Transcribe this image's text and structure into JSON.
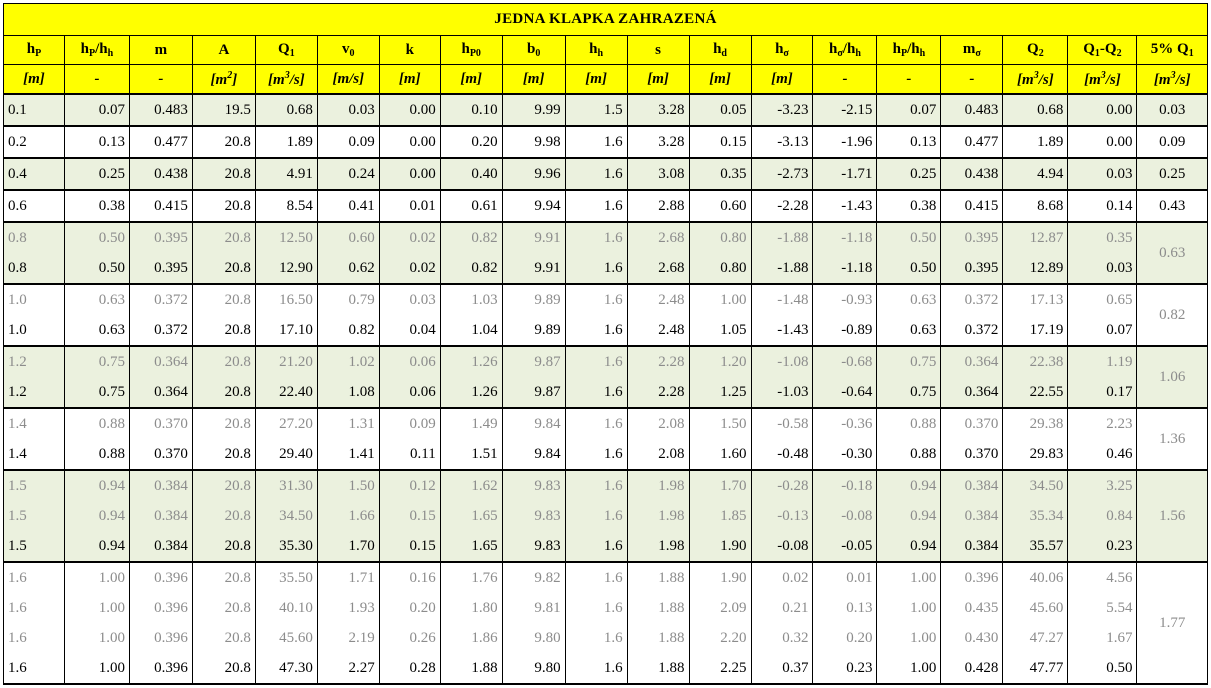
{
  "title": "JEDNA KLAPKA ZAHRAZENÁ",
  "columns": [
    {
      "main": "h",
      "sub": "P",
      "unit": "[m]"
    },
    {
      "main": "h",
      "sub": "P",
      "main2": "/h",
      "sub2": "h",
      "unit": "-"
    },
    {
      "main": "m",
      "unit": "-"
    },
    {
      "main": "A",
      "unit": "[m",
      "sup": "2",
      "unit_end": "]"
    },
    {
      "main": "Q",
      "sub": "1",
      "unit": "[m",
      "sup": "3",
      "unit_end": "/s]"
    },
    {
      "main": "v",
      "sub": "0",
      "unit": "[m/s]"
    },
    {
      "main": "k",
      "unit": "[m]"
    },
    {
      "main": "h",
      "sub": "P0",
      "unit": "[m]"
    },
    {
      "main": "b",
      "sub": "0",
      "unit": "[m]"
    },
    {
      "main": "h",
      "sub": "h",
      "unit": "[m]"
    },
    {
      "main": "s",
      "unit": "[m]"
    },
    {
      "main": "h",
      "sub": "d",
      "unit": "[m]"
    },
    {
      "main": "h",
      "sub": "σ",
      "unit": "[m]"
    },
    {
      "main": "h",
      "sub": "σ",
      "main2": "/h",
      "sub2": "h",
      "unit": "-"
    },
    {
      "main": "h",
      "sub": "P",
      "main2": "/h",
      "sub2": "h",
      "unit": "-"
    },
    {
      "main": "m",
      "sub": "σ",
      "unit": "-"
    },
    {
      "main": "Q",
      "sub": "2",
      "unit": "[m",
      "sup": "3",
      "unit_end": "/s]"
    },
    {
      "main": "Q",
      "sub": "1",
      "main2": "-Q",
      "sub2": "2",
      "unit": "[m",
      "sup": "3",
      "unit_end": "/s]"
    },
    {
      "main": "5% Q",
      "sub": "1",
      "unit": "[m",
      "sup": "3",
      "unit_end": "/s]"
    }
  ],
  "groups": [
    {
      "shade": true,
      "pct": "0.03",
      "rows": [
        {
          "style": "cur",
          "cells": [
            "0.1",
            "0.07",
            "0.483",
            "19.5",
            "0.68",
            "0.03",
            "0.00",
            "0.10",
            "9.99",
            "1.5",
            "3.28",
            "0.05",
            "-3.23",
            "-2.15",
            "0.07",
            "0.483",
            "0.68",
            "0.00"
          ]
        }
      ]
    },
    {
      "shade": false,
      "pct": "0.09",
      "rows": [
        {
          "style": "cur",
          "cells": [
            "0.2",
            "0.13",
            "0.477",
            "20.8",
            "1.89",
            "0.09",
            "0.00",
            "0.20",
            "9.98",
            "1.6",
            "3.28",
            "0.15",
            "-3.13",
            "-1.96",
            "0.13",
            "0.477",
            "1.89",
            "0.00"
          ]
        }
      ]
    },
    {
      "shade": true,
      "pct": "0.25",
      "rows": [
        {
          "style": "cur",
          "cells": [
            "0.4",
            "0.25",
            "0.438",
            "20.8",
            "4.91",
            "0.24",
            "0.00",
            "0.40",
            "9.96",
            "1.6",
            "3.08",
            "0.35",
            "-2.73",
            "-1.71",
            "0.25",
            "0.438",
            "4.94",
            "0.03"
          ]
        }
      ]
    },
    {
      "shade": false,
      "pct": "0.43",
      "rows": [
        {
          "style": "cur",
          "cells": [
            "0.6",
            "0.38",
            "0.415",
            "20.8",
            "8.54",
            "0.41",
            "0.01",
            "0.61",
            "9.94",
            "1.6",
            "2.88",
            "0.60",
            "-2.28",
            "-1.43",
            "0.38",
            "0.415",
            "8.68",
            "0.14"
          ]
        }
      ]
    },
    {
      "shade": true,
      "pct": "0.63",
      "rows": [
        {
          "style": "old",
          "cells": [
            "0.8",
            "0.50",
            "0.395",
            "20.8",
            "12.50",
            "0.60",
            "0.02",
            "0.82",
            "9.91",
            "1.6",
            "2.68",
            "0.80",
            "-1.88",
            "-1.18",
            "0.50",
            "0.395",
            "12.87",
            "0.35"
          ]
        },
        {
          "style": "cur",
          "cells": [
            "0.8",
            "0.50",
            "0.395",
            "20.8",
            "12.90",
            "0.62",
            "0.02",
            "0.82",
            "9.91",
            "1.6",
            "2.68",
            "0.80",
            "-1.88",
            "-1.18",
            "0.50",
            "0.395",
            "12.89",
            "0.03"
          ]
        }
      ]
    },
    {
      "shade": false,
      "pct": "0.82",
      "rows": [
        {
          "style": "old",
          "cells": [
            "1.0",
            "0.63",
            "0.372",
            "20.8",
            "16.50",
            "0.79",
            "0.03",
            "1.03",
            "9.89",
            "1.6",
            "2.48",
            "1.00",
            "-1.48",
            "-0.93",
            "0.63",
            "0.372",
            "17.13",
            "0.65"
          ]
        },
        {
          "style": "cur",
          "cells": [
            "1.0",
            "0.63",
            "0.372",
            "20.8",
            "17.10",
            "0.82",
            "0.04",
            "1.04",
            "9.89",
            "1.6",
            "2.48",
            "1.05",
            "-1.43",
            "-0.89",
            "0.63",
            "0.372",
            "17.19",
            "0.07"
          ]
        }
      ]
    },
    {
      "shade": true,
      "pct": "1.06",
      "rows": [
        {
          "style": "old",
          "cells": [
            "1.2",
            "0.75",
            "0.364",
            "20.8",
            "21.20",
            "1.02",
            "0.06",
            "1.26",
            "9.87",
            "1.6",
            "2.28",
            "1.20",
            "-1.08",
            "-0.68",
            "0.75",
            "0.364",
            "22.38",
            "1.19"
          ]
        },
        {
          "style": "cur",
          "cells": [
            "1.2",
            "0.75",
            "0.364",
            "20.8",
            "22.40",
            "1.08",
            "0.06",
            "1.26",
            "9.87",
            "1.6",
            "2.28",
            "1.25",
            "-1.03",
            "-0.64",
            "0.75",
            "0.364",
            "22.55",
            "0.17"
          ]
        }
      ]
    },
    {
      "shade": false,
      "pct": "1.36",
      "rows": [
        {
          "style": "old",
          "cells": [
            "1.4",
            "0.88",
            "0.370",
            "20.8",
            "27.20",
            "1.31",
            "0.09",
            "1.49",
            "9.84",
            "1.6",
            "2.08",
            "1.50",
            "-0.58",
            "-0.36",
            "0.88",
            "0.370",
            "29.38",
            "2.23"
          ]
        },
        {
          "style": "cur",
          "cells": [
            "1.4",
            "0.88",
            "0.370",
            "20.8",
            "29.40",
            "1.41",
            "0.11",
            "1.51",
            "9.84",
            "1.6",
            "2.08",
            "1.60",
            "-0.48",
            "-0.30",
            "0.88",
            "0.370",
            "29.83",
            "0.46"
          ]
        }
      ]
    },
    {
      "shade": true,
      "pct": "1.56",
      "rows": [
        {
          "style": "old",
          "cells": [
            "1.5",
            "0.94",
            "0.384",
            "20.8",
            "31.30",
            "1.50",
            "0.12",
            "1.62",
            "9.83",
            "1.6",
            "1.98",
            "1.70",
            "-0.28",
            "-0.18",
            "0.94",
            "0.384",
            "34.50",
            "3.25"
          ]
        },
        {
          "style": "old",
          "cells": [
            "1.5",
            "0.94",
            "0.384",
            "20.8",
            "34.50",
            "1.66",
            "0.15",
            "1.65",
            "9.83",
            "1.6",
            "1.98",
            "1.85",
            "-0.13",
            "-0.08",
            "0.94",
            "0.384",
            "35.34",
            "0.84"
          ]
        },
        {
          "style": "cur",
          "cells": [
            "1.5",
            "0.94",
            "0.384",
            "20.8",
            "35.30",
            "1.70",
            "0.15",
            "1.65",
            "9.83",
            "1.6",
            "1.98",
            "1.90",
            "-0.08",
            "-0.05",
            "0.94",
            "0.384",
            "35.57",
            "0.23"
          ]
        }
      ]
    },
    {
      "shade": false,
      "pct": "1.77",
      "rows": [
        {
          "style": "old",
          "cells": [
            "1.6",
            "1.00",
            "0.396",
            "20.8",
            "35.50",
            "1.71",
            "0.16",
            "1.76",
            "9.82",
            "1.6",
            "1.88",
            "1.90",
            "0.02",
            "0.01",
            "1.00",
            "0.396",
            "40.06",
            "4.56"
          ]
        },
        {
          "style": "old",
          "cells": [
            "1.6",
            "1.00",
            "0.396",
            "20.8",
            "40.10",
            "1.93",
            "0.20",
            "1.80",
            "9.81",
            "1.6",
            "1.88",
            "2.09",
            "0.21",
            "0.13",
            "1.00",
            "0.435",
            "45.60",
            "5.54"
          ]
        },
        {
          "style": "old",
          "cells": [
            "1.6",
            "1.00",
            "0.396",
            "20.8",
            "45.60",
            "2.19",
            "0.26",
            "1.86",
            "9.80",
            "1.6",
            "1.88",
            "2.20",
            "0.32",
            "0.20",
            "1.00",
            "0.430",
            "47.27",
            "1.67"
          ]
        },
        {
          "style": "cur",
          "cells": [
            "1.6",
            "1.00",
            "0.396",
            "20.8",
            "47.30",
            "2.27",
            "0.28",
            "1.88",
            "9.80",
            "1.6",
            "1.88",
            "2.25",
            "0.37",
            "0.23",
            "1.00",
            "0.428",
            "47.77",
            "0.50"
          ]
        }
      ]
    }
  ]
}
